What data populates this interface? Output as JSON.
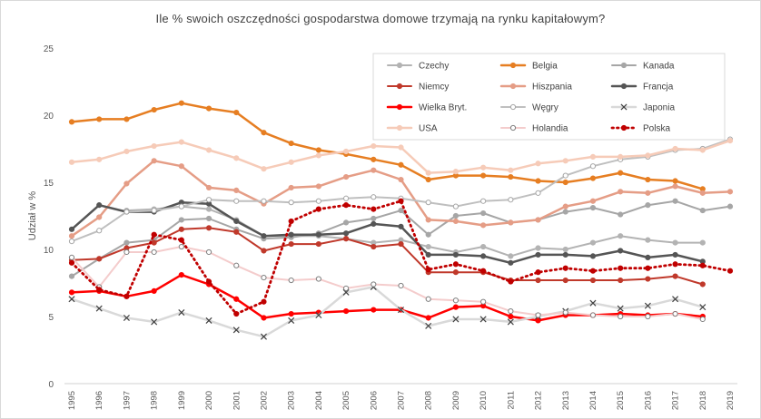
{
  "chart_data": {
    "type": "line",
    "title": "Ile % swoich oszczędności gospodarstwa domowe trzymają na rynku kapitałowym?",
    "xlabel": "",
    "ylabel": "Udział w %",
    "x": [
      "1995",
      "1996",
      "1997",
      "1998",
      "1999",
      "2000",
      "2001",
      "2002",
      "2003",
      "2004",
      "2005",
      "2006",
      "2007",
      "2008",
      "2009",
      "2010",
      "2011",
      "2012",
      "2013",
      "2014",
      "2015",
      "2016",
      "2017",
      "2018",
      "2019"
    ],
    "ylim": [
      0,
      25
    ],
    "yticks": [
      0,
      5,
      10,
      15,
      20,
      25
    ],
    "grid": false,
    "legend_position": "top-right",
    "series": [
      {
        "name": "Czechy",
        "color": "#b3b3b3",
        "dash": "solid",
        "marker": "dot-filled",
        "width": 2,
        "values": [
          null,
          null,
          12.9,
          13.0,
          13.2,
          13.0,
          12.2,
          11.0,
          11.0,
          11.0,
          10.8,
          10.5,
          10.7,
          10.2,
          9.8,
          10.2,
          9.5,
          10.1,
          10.0,
          10.5,
          11.0,
          10.7,
          10.5,
          10.5,
          null
        ]
      },
      {
        "name": "Belgia",
        "color": "#e67e22",
        "dash": "solid",
        "marker": "dot-filled",
        "width": 2.5,
        "values": [
          19.5,
          19.7,
          19.7,
          20.4,
          20.9,
          20.5,
          20.2,
          18.7,
          17.9,
          17.4,
          17.1,
          16.7,
          16.3,
          15.2,
          15.5,
          15.5,
          15.4,
          15.1,
          15.0,
          15.3,
          15.7,
          15.2,
          15.1,
          14.5,
          null
        ]
      },
      {
        "name": "Kanada",
        "color": "#a6a6a6",
        "dash": "solid",
        "marker": "dot-filled",
        "width": 2,
        "values": [
          8.0,
          9.3,
          10.5,
          10.7,
          12.2,
          12.3,
          11.5,
          10.8,
          10.9,
          11.2,
          12.0,
          12.3,
          12.9,
          11.1,
          12.5,
          12.7,
          12.0,
          12.2,
          12.8,
          13.1,
          12.6,
          13.3,
          13.6,
          12.9,
          13.2
        ]
      },
      {
        "name": "Niemcy",
        "color": "#c0392b",
        "dash": "solid",
        "marker": "dot-filled",
        "width": 2,
        "values": [
          9.2,
          9.3,
          10.1,
          10.5,
          11.5,
          11.6,
          11.3,
          9.9,
          10.4,
          10.4,
          10.8,
          10.2,
          10.4,
          8.3,
          8.3,
          8.3,
          7.7,
          7.7,
          7.7,
          7.7,
          7.7,
          7.8,
          8.0,
          7.4,
          null
        ]
      },
      {
        "name": "Hiszpania",
        "color": "#e59d86",
        "dash": "solid",
        "marker": "dot-filled",
        "width": 2.5,
        "values": [
          11.0,
          12.4,
          14.9,
          16.6,
          16.2,
          14.6,
          14.4,
          13.4,
          14.6,
          14.7,
          15.4,
          15.9,
          15.2,
          12.2,
          12.1,
          11.8,
          12.0,
          12.2,
          13.2,
          13.6,
          14.3,
          14.2,
          14.7,
          14.2,
          14.3
        ]
      },
      {
        "name": "Francja",
        "color": "#555555",
        "dash": "solid",
        "marker": "dot-filled",
        "width": 2.5,
        "values": [
          11.5,
          13.3,
          12.8,
          12.8,
          13.5,
          13.4,
          12.1,
          11.0,
          11.1,
          11.1,
          11.2,
          11.9,
          11.7,
          9.6,
          9.6,
          9.5,
          9.0,
          9.6,
          9.6,
          9.5,
          9.9,
          9.4,
          9.6,
          9.1,
          null
        ]
      },
      {
        "name": "Wielka Bryt.",
        "color": "#ff0000",
        "dash": "solid",
        "marker": "dot-filled",
        "width": 2.5,
        "values": [
          6.8,
          6.9,
          6.5,
          6.9,
          8.1,
          7.4,
          6.3,
          4.9,
          5.2,
          5.3,
          5.4,
          5.5,
          5.5,
          4.9,
          5.7,
          5.8,
          5.0,
          4.7,
          5.1,
          5.1,
          5.2,
          5.1,
          5.2,
          5.0,
          null
        ]
      },
      {
        "name": "Węgry",
        "color": "#bfbfbf",
        "dash": "solid",
        "marker": "dot-hollow",
        "width": 2,
        "values": [
          10.6,
          11.4,
          12.8,
          12.9,
          13.2,
          13.7,
          13.6,
          13.6,
          13.5,
          13.6,
          13.8,
          13.9,
          13.8,
          13.5,
          13.2,
          13.6,
          13.7,
          14.2,
          15.5,
          16.2,
          16.7,
          16.9,
          17.4,
          17.5,
          18.2
        ]
      },
      {
        "name": "Japonia",
        "color": "#d9d9d9",
        "dash": "solid",
        "marker": "x",
        "width": 2.5,
        "values": [
          6.3,
          5.6,
          4.9,
          4.6,
          5.3,
          4.7,
          4.0,
          3.5,
          4.7,
          5.1,
          6.8,
          7.2,
          5.5,
          4.3,
          4.8,
          4.8,
          4.6,
          5.0,
          5.4,
          6.0,
          5.6,
          5.8,
          6.3,
          5.7,
          null
        ]
      },
      {
        "name": "USA",
        "color": "#f6cbb8",
        "dash": "solid",
        "marker": "dot-filled",
        "width": 2.5,
        "values": [
          16.5,
          16.7,
          17.3,
          17.7,
          18.0,
          17.4,
          16.8,
          16.0,
          16.5,
          17.0,
          17.3,
          17.7,
          17.6,
          15.7,
          15.8,
          16.1,
          15.9,
          16.4,
          16.6,
          16.9,
          16.9,
          17.0,
          17.5,
          17.4,
          18.1
        ]
      },
      {
        "name": "Holandia",
        "color": "#f4cccc",
        "dash": "solid",
        "marker": "dot-hollow",
        "width": 2,
        "values": [
          9.4,
          7.2,
          9.8,
          9.8,
          10.2,
          9.8,
          8.8,
          7.9,
          7.7,
          7.8,
          7.1,
          7.4,
          7.3,
          6.3,
          6.2,
          6.1,
          5.4,
          5.1,
          5.3,
          5.1,
          5.0,
          5.0,
          5.2,
          4.8,
          null
        ]
      },
      {
        "name": "Polska",
        "color": "#c00000",
        "dash": "dotted",
        "marker": "dot-filled",
        "width": 2.5,
        "values": [
          9.0,
          7.0,
          6.5,
          11.1,
          10.7,
          7.6,
          5.2,
          6.1,
          12.1,
          13.0,
          13.3,
          13.0,
          13.6,
          8.5,
          8.9,
          8.4,
          7.6,
          8.3,
          8.6,
          8.4,
          8.6,
          8.6,
          8.9,
          8.8,
          8.4
        ]
      }
    ]
  }
}
